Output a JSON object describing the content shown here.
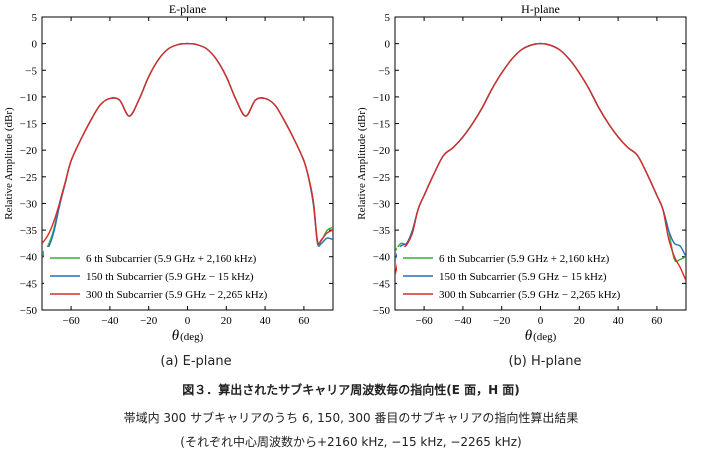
{
  "subcaptions": {
    "a": "(a) E-plane",
    "b": "(b) H-plane"
  },
  "caption": {
    "title": "図３．算出されたサブキャリア周波数毎の指向性(E 面，H 面)",
    "line1": "帯域内 300 サブキャリアのうち 6, 150, 300 番目のサブキャリアの指向性算出結果",
    "line2": "(それぞれ中心周波数から+2160  kHz, −15 kHz, −2265 kHz)"
  },
  "colors": {
    "s6": "#33b033",
    "s150": "#2a6fb8",
    "s300": "#d92b2b"
  },
  "chart_data": [
    {
      "type": "line",
      "title": "E-plane",
      "xlabel_symbol": "θ",
      "xlabel_unit": "(deg)",
      "ylabel": "Relative Amplitude (dBr)",
      "xlim": [
        -75,
        75
      ],
      "ylim": [
        -50,
        5
      ],
      "xticks": [
        -60,
        -40,
        -20,
        0,
        20,
        40,
        60
      ],
      "xtick_labels": [
        "−60",
        "−40",
        "−20",
        "0",
        "20",
        "40",
        "60"
      ],
      "yticks": [
        5,
        0,
        -5,
        -10,
        -15,
        -20,
        -25,
        -30,
        -35,
        -40,
        -45,
        -50
      ],
      "ytick_labels": [
        "5",
        "0",
        "−5",
        "−10",
        "−15",
        "−20",
        "−25",
        "−30",
        "−35",
        "−40",
        "−45",
        "−50"
      ],
      "legend_position": "bottom-left",
      "series": [
        {
          "name": "6 th Subcarrier (5.9 GHz + 2,160 kHz)",
          "color_key": "s6",
          "x": [
            -75,
            -72,
            -69,
            -66,
            -63,
            -60,
            -55,
            -50,
            -45,
            -40,
            -35,
            -30,
            -25,
            -20,
            -15,
            -10,
            -5,
            0,
            5,
            10,
            15,
            20,
            25,
            30,
            35,
            40,
            45,
            50,
            55,
            60,
            63,
            65,
            67,
            69,
            72,
            75
          ],
          "y": [
            -39.5,
            -38,
            -35,
            -30,
            -26,
            -22,
            -18,
            -14.5,
            -11.5,
            -10.3,
            -10.6,
            -13.6,
            -10.5,
            -6.2,
            -3,
            -1,
            -0.2,
            0,
            -0.2,
            -1,
            -3,
            -6.2,
            -10.5,
            -13.6,
            -10.6,
            -10.3,
            -11.5,
            -14.5,
            -18,
            -22,
            -26,
            -30,
            -37,
            -37,
            -35,
            -34.5
          ]
        },
        {
          "name": "150 th Subcarrier (5.9 GHz − 15 kHz)",
          "color_key": "s150",
          "x": [
            -75,
            -72,
            -69,
            -66,
            -63,
            -60,
            -55,
            -50,
            -45,
            -40,
            -35,
            -30,
            -25,
            -20,
            -15,
            -10,
            -5,
            0,
            5,
            10,
            15,
            20,
            25,
            30,
            35,
            40,
            45,
            50,
            55,
            60,
            63,
            65,
            67,
            69,
            72,
            75
          ],
          "y": [
            -40,
            -38.5,
            -35.5,
            -30.5,
            -26.2,
            -22,
            -18,
            -14.5,
            -11.5,
            -10.3,
            -10.6,
            -13.6,
            -10.5,
            -6.2,
            -3,
            -1,
            -0.2,
            0,
            -0.2,
            -1,
            -3,
            -6.2,
            -10.5,
            -13.6,
            -10.6,
            -10.3,
            -11.5,
            -14.5,
            -18,
            -22,
            -26.2,
            -30.5,
            -37.5,
            -37.5,
            -36.5,
            -36.8
          ]
        },
        {
          "name": "300 th Subcarrier (5.9 GHz − 2,265 kHz)",
          "color_key": "s300",
          "x": [
            -75,
            -72,
            -69,
            -66,
            -63,
            -60,
            -55,
            -50,
            -45,
            -40,
            -35,
            -30,
            -25,
            -20,
            -15,
            -10,
            -5,
            0,
            5,
            10,
            15,
            20,
            25,
            30,
            35,
            40,
            45,
            50,
            55,
            60,
            63,
            65,
            67,
            69,
            72,
            75
          ],
          "y": [
            -37.5,
            -36,
            -33.5,
            -30,
            -26,
            -22,
            -18,
            -14.5,
            -11.5,
            -10.3,
            -10.6,
            -13.6,
            -10.5,
            -6.2,
            -3,
            -1,
            -0.2,
            0,
            -0.2,
            -1,
            -3,
            -6.2,
            -10.5,
            -13.6,
            -10.6,
            -10.3,
            -11.5,
            -14.5,
            -18,
            -22,
            -26,
            -30,
            -37.2,
            -36.8,
            -35.5,
            -35
          ]
        }
      ]
    },
    {
      "type": "line",
      "title": "H-plane",
      "xlabel_symbol": "θ",
      "xlabel_unit": "(deg)",
      "ylabel": "Relative Amplitude (dBr)",
      "xlim": [
        -75,
        75
      ],
      "ylim": [
        -50,
        5
      ],
      "xticks": [
        -60,
        -40,
        -20,
        0,
        20,
        40,
        60
      ],
      "xtick_labels": [
        "−60",
        "−40",
        "−20",
        "0",
        "20",
        "40",
        "60"
      ],
      "yticks": [
        5,
        0,
        -5,
        -10,
        -15,
        -20,
        -25,
        -30,
        -35,
        -40,
        -45,
        -50
      ],
      "ytick_labels": [
        "5",
        "0",
        "−5",
        "−10",
        "−15",
        "−20",
        "−25",
        "−30",
        "−35",
        "−40",
        "−45",
        "−50"
      ],
      "legend_position": "bottom-left",
      "series": [
        {
          "name": "6 th Subcarrier (5.9 GHz + 2,160 kHz)",
          "color_key": "s6",
          "x": [
            -75,
            -72,
            -69,
            -66,
            -63,
            -60,
            -55,
            -50,
            -45,
            -40,
            -35,
            -30,
            -25,
            -20,
            -15,
            -10,
            -5,
            0,
            5,
            10,
            15,
            20,
            25,
            30,
            35,
            40,
            45,
            50,
            55,
            60,
            63,
            66,
            69,
            72,
            75
          ],
          "y": [
            -39,
            -37.5,
            -37.5,
            -35,
            -31,
            -28.5,
            -24.5,
            -21,
            -19.5,
            -17.5,
            -15,
            -12,
            -8.5,
            -5.5,
            -3,
            -1.2,
            -0.3,
            0,
            -0.3,
            -1.2,
            -3,
            -5.5,
            -8.5,
            -12,
            -15,
            -17.5,
            -19.5,
            -21,
            -24.5,
            -28.5,
            -31,
            -35,
            -40.5,
            -40.5,
            -40
          ]
        },
        {
          "name": "150 th Subcarrier (5.9 GHz − 15 kHz)",
          "color_key": "s150",
          "x": [
            -75,
            -72,
            -69,
            -66,
            -63,
            -60,
            -55,
            -50,
            -45,
            -40,
            -35,
            -30,
            -25,
            -20,
            -15,
            -10,
            -5,
            0,
            5,
            10,
            15,
            20,
            25,
            30,
            35,
            40,
            45,
            50,
            55,
            60,
            63,
            66,
            69,
            72,
            75
          ],
          "y": [
            -40.5,
            -38,
            -37.5,
            -35,
            -31,
            -28.5,
            -24.5,
            -21,
            -19.5,
            -17.5,
            -15,
            -12,
            -8.5,
            -5.5,
            -3,
            -1.2,
            -0.3,
            0,
            -0.3,
            -1.2,
            -3,
            -5.5,
            -8.5,
            -12,
            -15,
            -17.5,
            -19.5,
            -21,
            -24.5,
            -28.5,
            -31,
            -35,
            -37.5,
            -38,
            -40
          ]
        },
        {
          "name": "300 th Subcarrier (5.9 GHz − 2,265 kHz)",
          "color_key": "s300",
          "x": [
            -75,
            -72,
            -69,
            -66,
            -63,
            -60,
            -55,
            -50,
            -45,
            -40,
            -35,
            -30,
            -25,
            -20,
            -15,
            -10,
            -5,
            0,
            5,
            10,
            15,
            20,
            25,
            30,
            35,
            40,
            45,
            50,
            55,
            60,
            63,
            66,
            69,
            72,
            75
          ],
          "y": [
            -43.5,
            -39,
            -37.8,
            -35.5,
            -31,
            -28.5,
            -24.5,
            -21,
            -19.5,
            -17.5,
            -15,
            -12,
            -8.5,
            -5.5,
            -3,
            -1.2,
            -0.3,
            0,
            -0.3,
            -1.2,
            -3,
            -5.5,
            -8.5,
            -12,
            -15,
            -17.5,
            -19.5,
            -21,
            -24.5,
            -28.5,
            -31,
            -36.5,
            -40,
            -42,
            -44.5
          ]
        }
      ]
    }
  ]
}
